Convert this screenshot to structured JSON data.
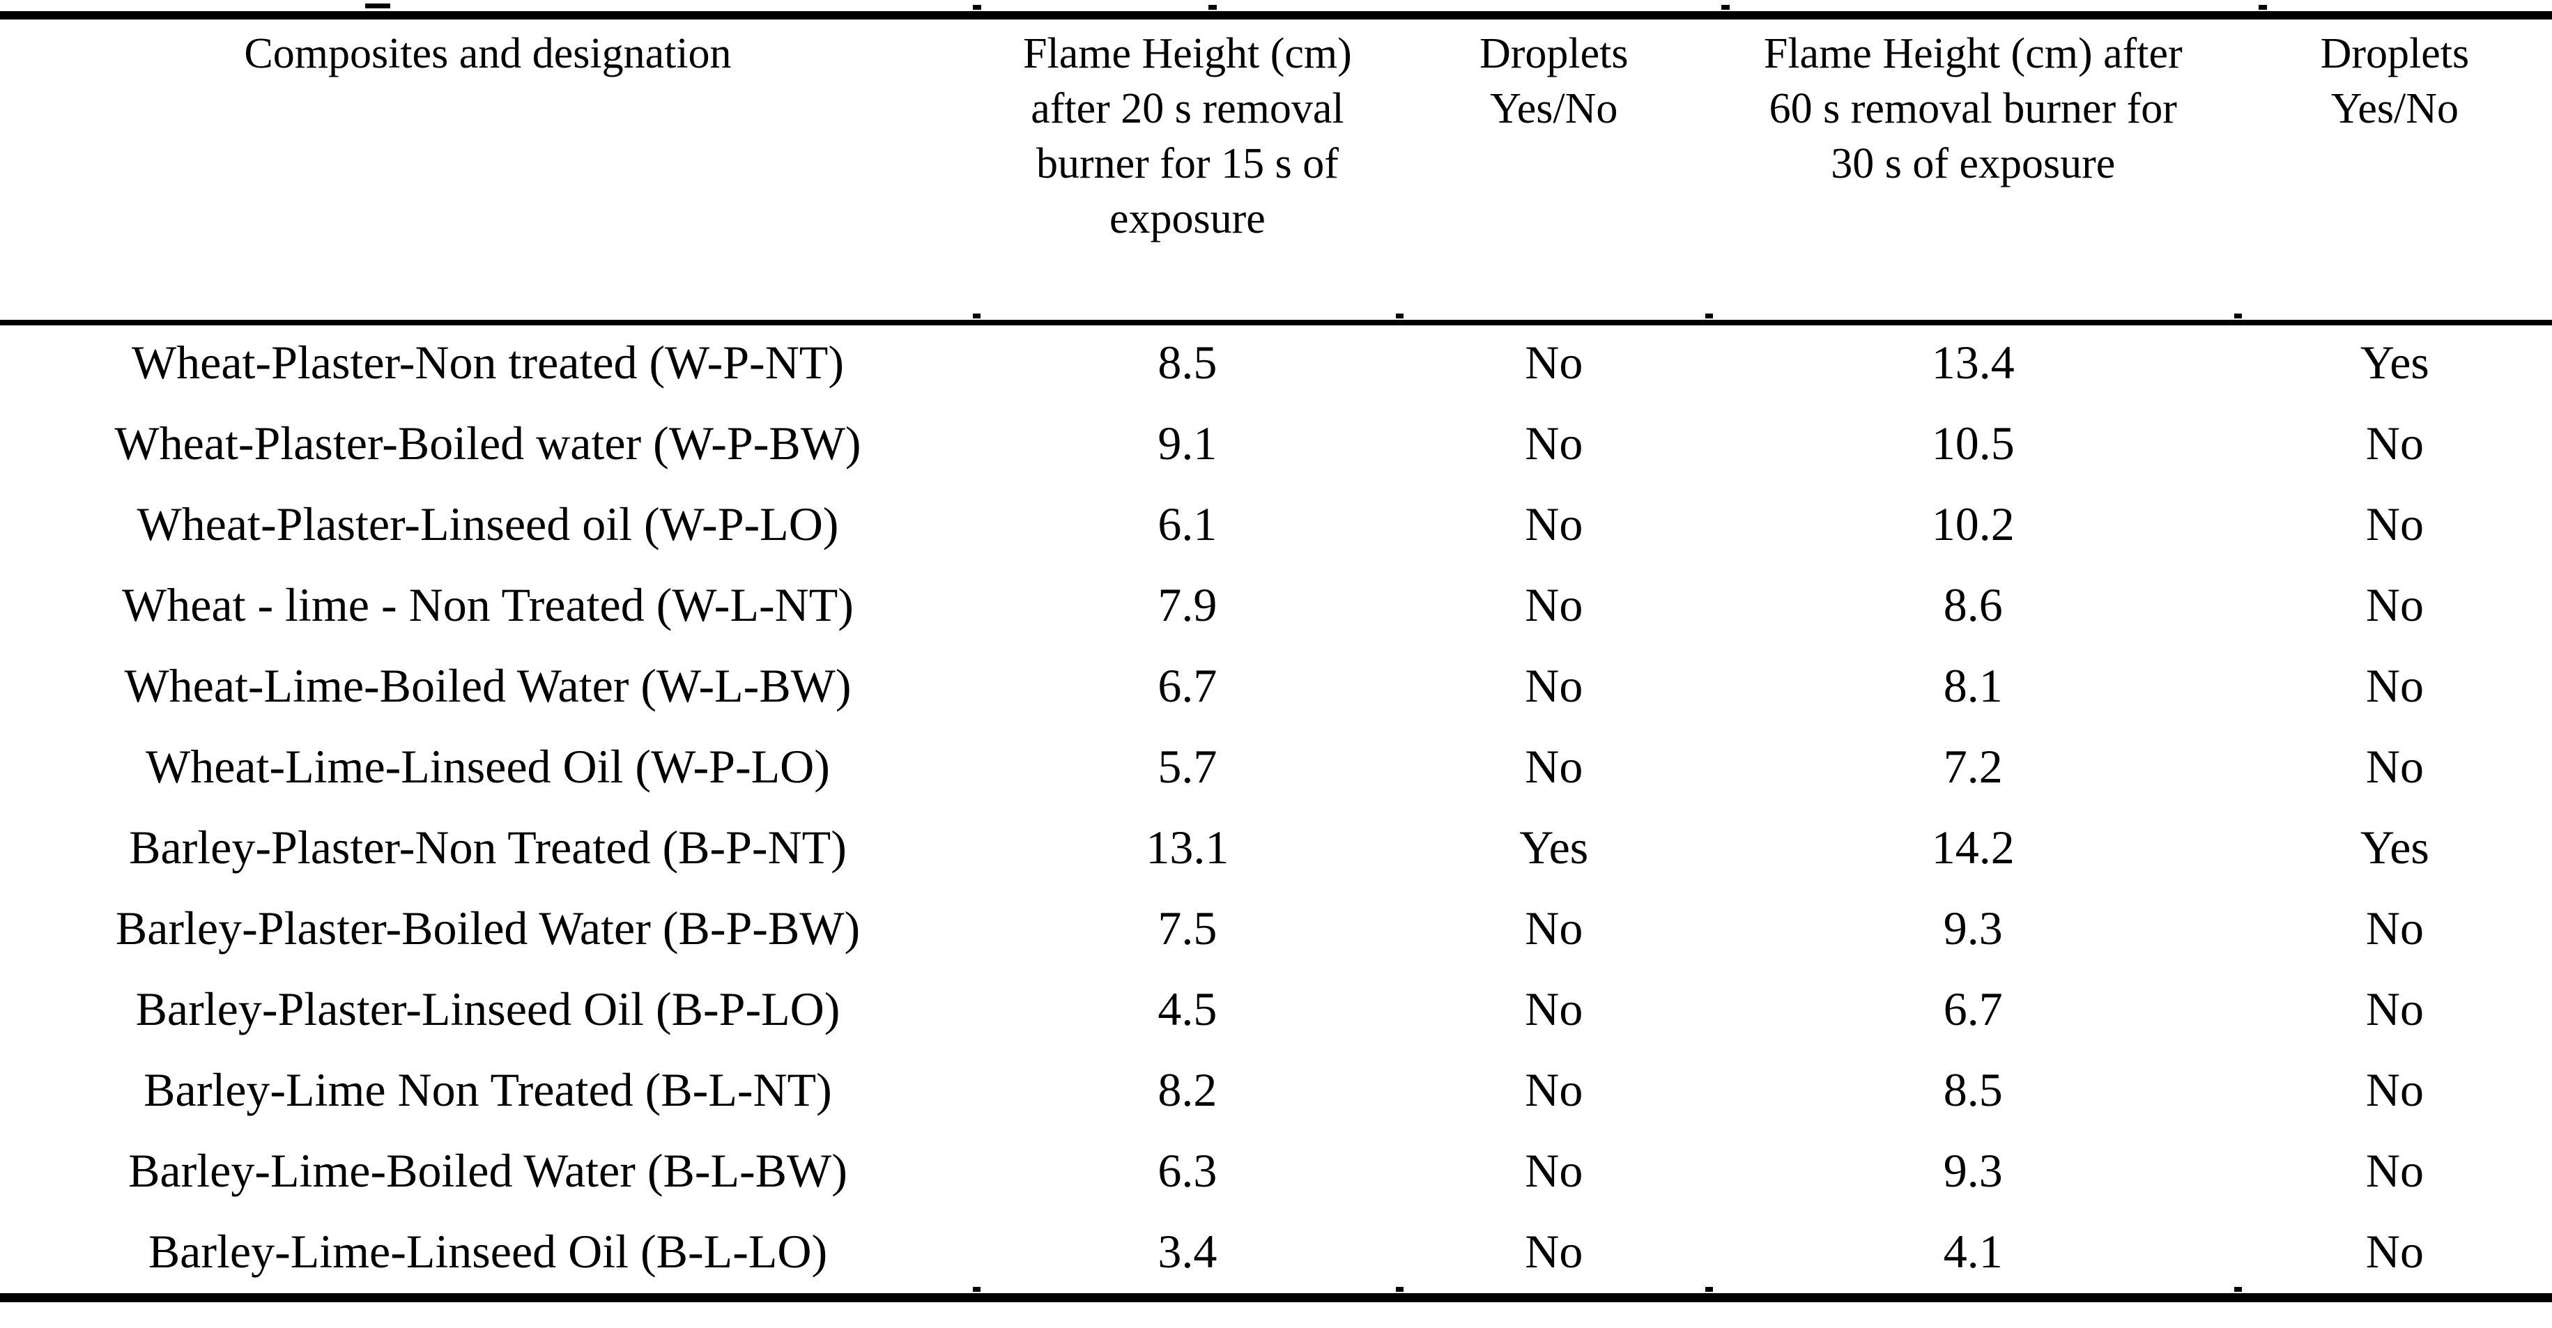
{
  "table": {
    "columns": [
      {
        "label": "Composites and designation",
        "lines": [
          "Composites and designation"
        ]
      },
      {
        "label": "Flame Height (cm) after 20 s removal burner for 15 s of exposure",
        "lines": [
          "Flame Height (cm)",
          "after 20 s removal",
          "burner for 15 s of",
          "exposure"
        ]
      },
      {
        "label": "Droplets Yes/No",
        "lines": [
          "Droplets",
          "Yes/No"
        ]
      },
      {
        "label": "Flame Height (cm) after 60 s removal burner for 30 s of exposure",
        "lines": [
          "Flame Height (cm) after",
          "60 s removal burner for",
          "30 s of exposure"
        ]
      },
      {
        "label": "Droplets Yes/No",
        "lines": [
          "Droplets",
          "Yes/No"
        ]
      }
    ],
    "rows": [
      {
        "composite": "Wheat-Plaster-Non treated  (W-P-NT)",
        "flame_20s": "8.5",
        "droplets_20s": "No",
        "flame_60s": "13.4",
        "droplets_60s": "Yes"
      },
      {
        "composite": "Wheat-Plaster-Boiled water (W-P-BW)",
        "flame_20s": "9.1",
        "droplets_20s": "No",
        "flame_60s": "10.5",
        "droplets_60s": "No"
      },
      {
        "composite": "Wheat-Plaster-Linseed oil (W-P-LO)",
        "flame_20s": "6.1",
        "droplets_20s": "No",
        "flame_60s": "10.2",
        "droplets_60s": "No"
      },
      {
        "composite": "Wheat - lime - Non Treated  (W-L-NT)",
        "flame_20s": "7.9",
        "droplets_20s": "No",
        "flame_60s": "8.6",
        "droplets_60s": "No"
      },
      {
        "composite": "Wheat-Lime-Boiled Water  (W-L-BW)",
        "flame_20s": "6.7",
        "droplets_20s": "No",
        "flame_60s": "8.1",
        "droplets_60s": "No"
      },
      {
        "composite": "Wheat-Lime-Linseed Oil (W-P-LO)",
        "flame_20s": "5.7",
        "droplets_20s": "No",
        "flame_60s": "7.2",
        "droplets_60s": "No"
      },
      {
        "composite": "Barley-Plaster-Non Treated  (B-P-NT)",
        "flame_20s": "13.1",
        "droplets_20s": "Yes",
        "flame_60s": "14.2",
        "droplets_60s": "Yes"
      },
      {
        "composite": "Barley-Plaster-Boiled Water  (B-P-BW)",
        "flame_20s": "7.5",
        "droplets_20s": "No",
        "flame_60s": "9.3",
        "droplets_60s": "No"
      },
      {
        "composite": "Barley-Plaster-Linseed Oil  (B-P-LO)",
        "flame_20s": "4.5",
        "droplets_20s": "No",
        "flame_60s": "6.7",
        "droplets_60s": "No"
      },
      {
        "composite": "Barley-Lime Non Treated  (B-L-NT)",
        "flame_20s": "8.2",
        "droplets_20s": "No",
        "flame_60s": "8.5",
        "droplets_60s": "No"
      },
      {
        "composite": "Barley-Lime-Boiled Water  (B-L-BW)",
        "flame_20s": "6.3",
        "droplets_20s": "No",
        "flame_60s": "9.3",
        "droplets_60s": "No"
      },
      {
        "composite": "Barley-Lime-Linseed Oil  (B-L-LO)",
        "flame_20s": "3.4",
        "droplets_20s": "No",
        "flame_60s": "4.1",
        "droplets_60s": "No"
      }
    ]
  },
  "colors": {
    "ink": "#000000",
    "paper": "#ffffff"
  }
}
